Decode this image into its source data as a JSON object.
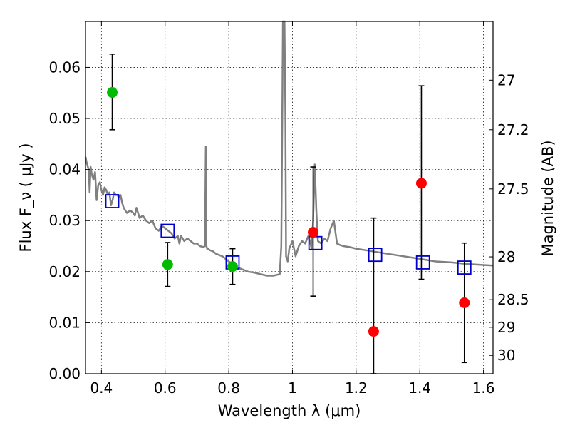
{
  "chart_data": {
    "type": "scatter",
    "title": "",
    "xlabel": "Wavelength  λ (μm)",
    "ylabel": "Flux  F_ν  ( μJy )",
    "ylabel_right": "Magnitude (AB)",
    "xlim": [
      0.35,
      1.63
    ],
    "ylim": [
      0.0,
      0.069
    ],
    "grid": true,
    "x_ticks": [
      0.4,
      0.6,
      0.8,
      1.0,
      1.2,
      1.4,
      1.6
    ],
    "x_tick_labels": [
      "0.4",
      "0.6",
      "0.8",
      "1",
      "1.2",
      "1.4",
      "1.6"
    ],
    "y_ticks": [
      0.0,
      0.01,
      0.02,
      0.03,
      0.04,
      0.05,
      0.06
    ],
    "y_tick_labels": [
      "0.00",
      "0.01",
      "0.02",
      "0.03",
      "0.04",
      "0.05",
      "0.06"
    ],
    "right_ticks": [
      {
        "label": "27",
        "flux": 0.0575
      },
      {
        "label": "27.2",
        "flux": 0.0478
      },
      {
        "label": "27.5",
        "flux": 0.0362
      },
      {
        "label": "28",
        "flux": 0.0229
      },
      {
        "label": "28.5",
        "flux": 0.0145
      },
      {
        "label": "29",
        "flux": 0.0091
      },
      {
        "label": "30",
        "flux": 0.0036
      }
    ],
    "series": [
      {
        "name": "model_spectrum",
        "kind": "line",
        "color": "#808080",
        "x": [
          0.35,
          0.355,
          0.36,
          0.363,
          0.366,
          0.37,
          0.375,
          0.38,
          0.385,
          0.39,
          0.395,
          0.4,
          0.405,
          0.41,
          0.415,
          0.42,
          0.425,
          0.43,
          0.435,
          0.44,
          0.445,
          0.45,
          0.455,
          0.46,
          0.465,
          0.47,
          0.48,
          0.49,
          0.5,
          0.505,
          0.51,
          0.52,
          0.53,
          0.54,
          0.55,
          0.56,
          0.57,
          0.58,
          0.59,
          0.6,
          0.61,
          0.62,
          0.63,
          0.64,
          0.645,
          0.65,
          0.66,
          0.67,
          0.68,
          0.69,
          0.7,
          0.71,
          0.72,
          0.725,
          0.728,
          0.73,
          0.732,
          0.735,
          0.74,
          0.75,
          0.76,
          0.78,
          0.8,
          0.82,
          0.84,
          0.86,
          0.88,
          0.9,
          0.92,
          0.94,
          0.96,
          0.965,
          0.968,
          0.97,
          0.975,
          0.978,
          0.98,
          0.985,
          0.99,
          1.0,
          1.01,
          1.02,
          1.03,
          1.04,
          1.05,
          1.055,
          1.06,
          1.065,
          1.07,
          1.075,
          1.08,
          1.09,
          1.1,
          1.11,
          1.12,
          1.13,
          1.14,
          1.15,
          1.16,
          1.18,
          1.2,
          1.25,
          1.3,
          1.35,
          1.4,
          1.45,
          1.5,
          1.55,
          1.6,
          1.63
        ],
        "y": [
          0.0425,
          0.041,
          0.04,
          0.0355,
          0.0405,
          0.039,
          0.038,
          0.0395,
          0.034,
          0.037,
          0.0375,
          0.036,
          0.035,
          0.0365,
          0.036,
          0.035,
          0.0355,
          0.033,
          0.034,
          0.0355,
          0.035,
          0.035,
          0.0345,
          0.035,
          0.0335,
          0.0325,
          0.0315,
          0.032,
          0.0315,
          0.031,
          0.0325,
          0.0305,
          0.031,
          0.03,
          0.0295,
          0.03,
          0.0285,
          0.028,
          0.029,
          0.0285,
          0.028,
          0.0275,
          0.0265,
          0.027,
          0.0255,
          0.027,
          0.026,
          0.0265,
          0.026,
          0.0255,
          0.0255,
          0.025,
          0.0248,
          0.025,
          0.0445,
          0.025,
          0.0245,
          0.0245,
          0.0242,
          0.024,
          0.0235,
          0.023,
          0.022,
          0.021,
          0.0205,
          0.02,
          0.0198,
          0.0195,
          0.0192,
          0.0192,
          0.0195,
          0.025,
          0.05,
          0.069,
          0.069,
          0.05,
          0.023,
          0.022,
          0.0245,
          0.026,
          0.023,
          0.025,
          0.026,
          0.0255,
          0.027,
          0.026,
          0.0245,
          0.03,
          0.041,
          0.032,
          0.026,
          0.0255,
          0.0265,
          0.026,
          0.0285,
          0.03,
          0.0255,
          0.0252,
          0.025,
          0.0248,
          0.0245,
          0.024,
          0.0235,
          0.023,
          0.0225,
          0.022,
          0.0218,
          0.0215,
          0.0213,
          0.0212
        ]
      },
      {
        "name": "model_photometry",
        "kind": "open-square",
        "color": "#0000cc",
        "x": [
          0.434,
          0.608,
          0.812,
          1.072,
          1.26,
          1.41,
          1.54
        ],
        "y": [
          0.0338,
          0.028,
          0.0218,
          0.0256,
          0.0233,
          0.0218,
          0.0208
        ]
      },
      {
        "name": "green_detections",
        "kind": "filled-circle",
        "color": "#00bb00",
        "x": [
          0.434,
          0.608,
          0.812
        ],
        "y": [
          0.0551,
          0.0214,
          0.021
        ],
        "yerr_low": [
          0.0073,
          0.0043,
          0.0035
        ],
        "yerr_high": [
          0.0075,
          0.0043,
          0.0035
        ]
      },
      {
        "name": "red_detections",
        "kind": "filled-circle",
        "color": "#ff0000",
        "x": [
          1.065,
          1.255,
          1.405,
          1.54
        ],
        "y": [
          0.0277,
          0.0083,
          0.0373,
          0.0139
        ],
        "yerr_low": [
          0.0125,
          0.0083,
          0.0188,
          0.0117
        ],
        "yerr_high": [
          0.0128,
          0.0222,
          0.0191,
          0.0117
        ]
      }
    ]
  }
}
